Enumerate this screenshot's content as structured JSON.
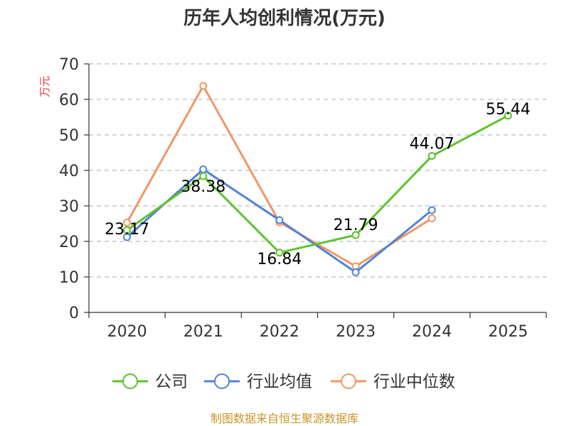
{
  "chart_data": {
    "type": "line",
    "title": "历年人均创利情况(万元)",
    "ylabel": "万元",
    "xlabel": "",
    "categories": [
      "2020",
      "2021",
      "2022",
      "2023",
      "2024",
      "2025"
    ],
    "ylim": [
      0,
      70
    ],
    "yticks": [
      0,
      10,
      20,
      30,
      40,
      50,
      60,
      70
    ],
    "grid": true,
    "legend_position": "bottom",
    "series": [
      {
        "name": "公司",
        "color": "#5cc22e",
        "values": [
          23.17,
          38.38,
          16.84,
          21.79,
          44.07,
          55.44
        ],
        "labels": [
          "23.17",
          "38.38",
          "16.84",
          "21.79",
          "44.07",
          "55.44"
        ]
      },
      {
        "name": "行业均值",
        "color": "#5082d8",
        "values": [
          21.2,
          40.3,
          26.0,
          11.3,
          28.8,
          null
        ]
      },
      {
        "name": "行业中位数",
        "color": "#f49563",
        "values": [
          25.3,
          63.8,
          25.4,
          13.0,
          26.5,
          null
        ]
      }
    ],
    "source": "制图数据来自恒生聚源数据库"
  }
}
